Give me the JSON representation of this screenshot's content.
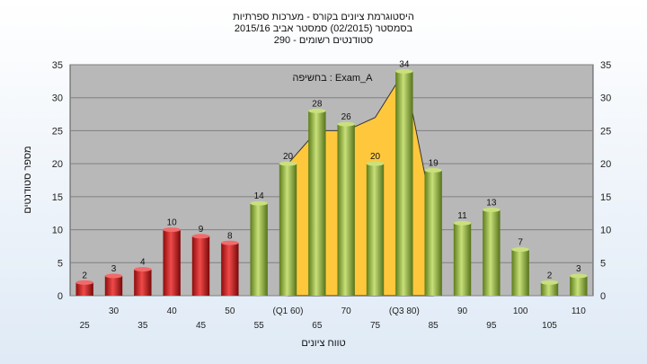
{
  "chart_data": {
    "type": "bar",
    "title_lines": [
      "היסטוגרמת ציונים בקורס - מערכות ספרתיות",
      "בסמסטר  (02/2015)  סמסטר אביב 2015/16",
      "סטודנטים רשומים - 290"
    ],
    "xlabel": "טווח ציונים",
    "ylabel": "מספר סטודנטים",
    "ylim": [
      0,
      35
    ],
    "yticks": [
      0,
      5,
      10,
      15,
      20,
      25,
      30,
      35
    ],
    "categories": [
      "25",
      "30",
      "35",
      "40",
      "45",
      "50",
      "55",
      "(Q1 60)",
      "65",
      "70",
      "75",
      "(Q3 80)",
      "85",
      "90",
      "95",
      "100",
      "105",
      "110"
    ],
    "values": [
      2,
      3,
      4,
      10,
      9,
      8,
      14,
      20,
      28,
      26,
      20,
      34,
      19,
      11,
      13,
      7,
      2,
      3
    ],
    "bar_colors": [
      "red",
      "red",
      "red",
      "red",
      "red",
      "red",
      "green",
      "green",
      "green",
      "green",
      "green",
      "green",
      "green",
      "green",
      "green",
      "green",
      "green",
      "green"
    ],
    "annotation": "בחשיפה : Exam_A",
    "area_overlay": {
      "categories": [
        "(Q1 60)",
        "65",
        "70",
        "75",
        "(Q3 80)",
        "85"
      ],
      "values": [
        20,
        25,
        25,
        27,
        34,
        12
      ]
    },
    "grid": true,
    "colors": {
      "plot_bg": "#b8b8b8",
      "red_bar": "#e02020",
      "green_bar": "#9bc43c",
      "area_fill": "#ffc83c",
      "grid": "#808080"
    }
  }
}
